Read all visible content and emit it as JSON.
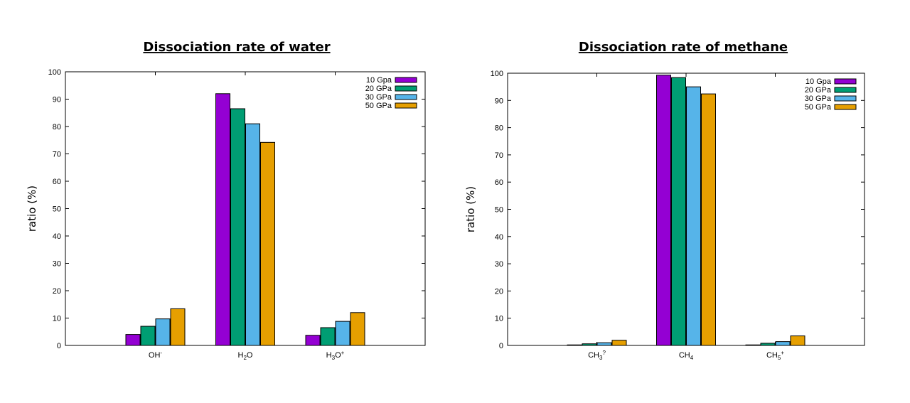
{
  "chart_data": [
    {
      "type": "bar",
      "title": "Dissociation rate of water",
      "xlabel": "",
      "ylabel": "ratio (%)",
      "ylim": [
        0,
        100
      ],
      "yticks": [
        0,
        10,
        20,
        30,
        40,
        50,
        60,
        70,
        80,
        90,
        100
      ],
      "categories": [
        {
          "base": "OH",
          "sub": "",
          "sup": "-"
        },
        {
          "base": "H",
          "sub": "2",
          "after": "O",
          "sup": ""
        },
        {
          "base": "H",
          "sub": "3",
          "after": "O",
          "sup": "+"
        }
      ],
      "category_text": [
        "OH-",
        "H2O",
        "H3O+"
      ],
      "series": [
        {
          "name": "10 Gpa",
          "color": "#9400D3",
          "values": [
            4.0,
            92.0,
            3.7
          ]
        },
        {
          "name": "20 GPa",
          "color": "#009E73",
          "values": [
            7.0,
            86.5,
            6.5
          ]
        },
        {
          "name": "30 GPa",
          "color": "#56B4E9",
          "values": [
            9.7,
            81.0,
            8.8
          ]
        },
        {
          "name": "50 GPa",
          "color": "#E69F00",
          "values": [
            13.4,
            74.2,
            12.0
          ]
        }
      ],
      "legend": "top-right",
      "grid": false
    },
    {
      "type": "bar",
      "title": "Dissociation rate of methane",
      "xlabel": "",
      "ylabel": "ratio (%)",
      "ylim": [
        0,
        100
      ],
      "yticks": [
        0,
        10,
        20,
        30,
        40,
        50,
        60,
        70,
        80,
        90,
        100
      ],
      "categories": [
        {
          "base": "CH",
          "sub": "3",
          "sup": "?"
        },
        {
          "base": "CH",
          "sub": "4",
          "sup": ""
        },
        {
          "base": "CH",
          "sub": "5",
          "sup": "+"
        }
      ],
      "category_text": [
        "CH3?",
        "CH4",
        "CH5+"
      ],
      "series": [
        {
          "name": "10 Gpa",
          "color": "#9400D3",
          "values": [
            0.2,
            99.3,
            0.2
          ]
        },
        {
          "name": "20 GPa",
          "color": "#009E73",
          "values": [
            0.6,
            98.4,
            0.8
          ]
        },
        {
          "name": "30 GPa",
          "color": "#56B4E9",
          "values": [
            1.0,
            95.0,
            1.4
          ]
        },
        {
          "name": "50 GPa",
          "color": "#E69F00",
          "values": [
            1.9,
            92.4,
            3.5
          ]
        }
      ],
      "legend": "top-right",
      "grid": false
    }
  ]
}
